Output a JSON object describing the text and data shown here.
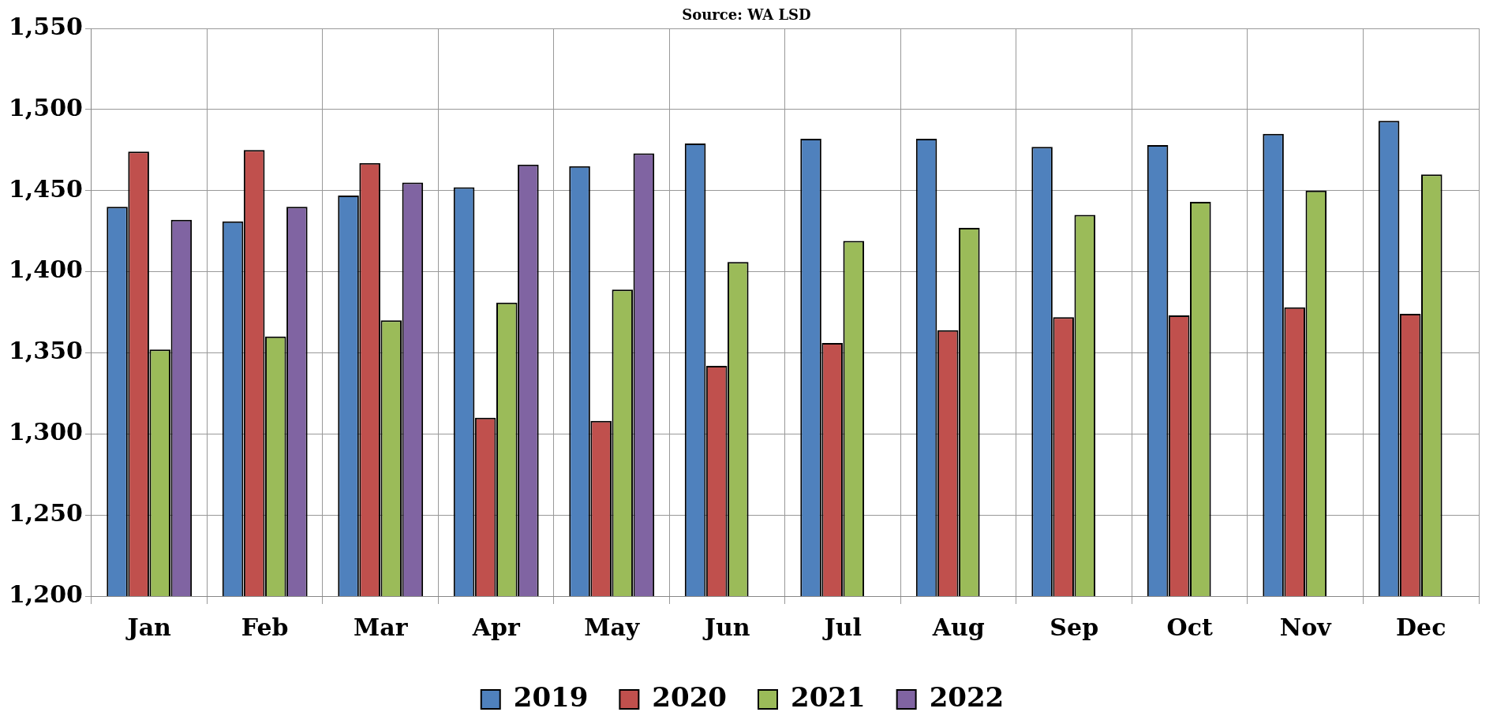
{
  "chart_data": {
    "type": "bar",
    "subtitle": "Source: WA LSD",
    "categories": [
      "Jan",
      "Feb",
      "Mar",
      "Apr",
      "May",
      "Jun",
      "Jul",
      "Aug",
      "Sep",
      "Oct",
      "Nov",
      "Dec"
    ],
    "series": [
      {
        "name": "2019",
        "color": "#4f81bd",
        "values": [
          1440,
          1431,
          1447,
          1452,
          1465,
          1479,
          1482,
          1482,
          1477,
          1478,
          1485,
          1493
        ]
      },
      {
        "name": "2020",
        "color": "#c0504d",
        "values": [
          1474,
          1475,
          1467,
          1310,
          1308,
          1342,
          1356,
          1364,
          1372,
          1373,
          1378,
          1374
        ]
      },
      {
        "name": "2021",
        "color": "#9bbb59",
        "values": [
          1352,
          1360,
          1370,
          1381,
          1389,
          1406,
          1419,
          1427,
          1435,
          1443,
          1450,
          1460
        ]
      },
      {
        "name": "2022",
        "color": "#8064a2",
        "values": [
          1432,
          1440,
          1455,
          1466,
          1473,
          null,
          null,
          null,
          null,
          null,
          null,
          null
        ]
      }
    ],
    "ylim": [
      1200,
      1550
    ],
    "yticks": [
      {
        "value": 1200,
        "label": "1,200"
      },
      {
        "value": 1250,
        "label": "1,250"
      },
      {
        "value": 1300,
        "label": "1,300"
      },
      {
        "value": 1350,
        "label": "1,350"
      },
      {
        "value": 1400,
        "label": "1,400"
      },
      {
        "value": 1450,
        "label": "1,450"
      },
      {
        "value": 1500,
        "label": "1,500"
      },
      {
        "value": 1550,
        "label": "1,550"
      }
    ],
    "grid": true,
    "legend": "bottom"
  }
}
